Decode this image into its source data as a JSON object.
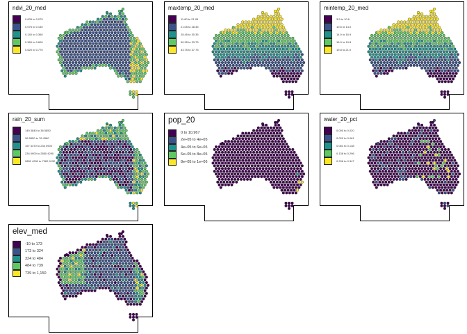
{
  "figure": {
    "frame_style": "Australia outline frame per panel",
    "palette": [
      "#440154",
      "#3b528b",
      "#21918c",
      "#5ec962",
      "#fde725"
    ],
    "background": "#ffffff",
    "cells": "hexagonal grid over Australia"
  },
  "panels": [
    {
      "id": "ndvi",
      "title": "ndvi_20_med",
      "size": "sm",
      "legend": [
        "0.005 to 0.075",
        "0.075 to 0.140",
        "0.140 to 0.360",
        "0.360 to 0.600",
        "0.620 to 0.770"
      ],
      "value_pattern": "coastal east high, interior mid"
    },
    {
      "id": "maxtemp",
      "title": "maxtemp_20_med",
      "size": "sm",
      "legend": [
        "11.80 to 21.05",
        "21.05 to 28.45",
        "28.45 to 30.35",
        "30.35 to 33.75",
        "33.75 to 37.75"
      ],
      "value_pattern": "north hot, south cool"
    },
    {
      "id": "mintemp",
      "title": "mintemp_20_med",
      "size": "sm",
      "legend": [
        "3.5 to 10.6",
        "10.6 to 14.0",
        "14.0 to 16.9",
        "16.9 to 19.8",
        "19.8 to 21.0"
      ],
      "value_pattern": "north hot, south cool"
    },
    {
      "id": "rain",
      "title": "rain_20_sum",
      "size": "sm",
      "legend": [
        "149 3840 to 36 5850",
        "36 5850 to 78 4360",
        "157 4470 to 234 0900",
        "234 0900 to 2850 4290",
        "2850 4290 to 7260 9130"
      ],
      "value_pattern": "coastal wet, interior dry"
    },
    {
      "id": "pop",
      "title": "pop_20",
      "size": "lg",
      "legend": [
        "0 to 10,967",
        "2e+05 to 4e+05",
        "4e+05 to 6e+05",
        "6e+05 to 8e+05",
        "8e+05 to 1e+06"
      ],
      "value_pattern": "mostly lowest, few urban hotspots"
    },
    {
      "id": "water",
      "title": "water_20_pct",
      "size": "sm",
      "legend": [
        "0.000 to 0.020",
        "0.020 to 0.061",
        "0.061 to 0.138",
        "0.138 to 0.296",
        "0.296 to 0.347"
      ],
      "value_pattern": "mostly lowest, scattered inland lakes"
    },
    {
      "id": "elev",
      "title": "elev_med",
      "size": "lg",
      "legend": [
        "-10 to 173",
        "173 to 324",
        "324 to 484",
        "484 to 739",
        "739 to 1,150"
      ],
      "value_pattern": "coasts low, western plateau and east ranges high"
    }
  ]
}
